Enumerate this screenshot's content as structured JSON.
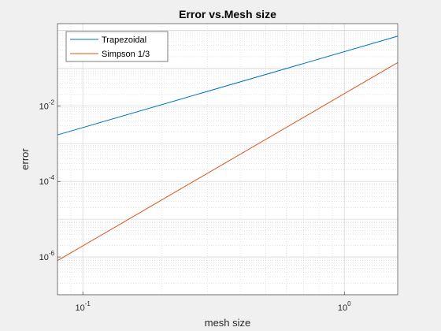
{
  "chart_data": {
    "type": "line",
    "title": "Error vs.Mesh size",
    "xlabel": "mesh size",
    "ylabel": "error",
    "x_scale": "log",
    "y_scale": "log",
    "xlim": [
      0.08,
      1.6
    ],
    "ylim": [
      1e-07,
      1.5
    ],
    "grid": true,
    "minor_grid": true,
    "legend_position": "top-left",
    "x_ticks": [
      {
        "value": 0.1,
        "base": "10",
        "exp": "-1"
      },
      {
        "value": 1,
        "base": "10",
        "exp": "0"
      }
    ],
    "y_ticks": [
      {
        "value": 1e-06,
        "base": "10",
        "exp": "-6"
      },
      {
        "value": 0.0001,
        "base": "10",
        "exp": "-4"
      },
      {
        "value": 0.01,
        "base": "10",
        "exp": "-2"
      }
    ],
    "series": [
      {
        "name": "Trapezoidal",
        "color": "#0072bd",
        "x": [
          0.08,
          1.6
        ],
        "y": [
          0.0017,
          0.7
        ]
      },
      {
        "name": "Simpson 1/3",
        "color": "#d95319",
        "x": [
          0.08,
          1.6
        ],
        "y": [
          8e-07,
          0.14
        ]
      }
    ]
  }
}
